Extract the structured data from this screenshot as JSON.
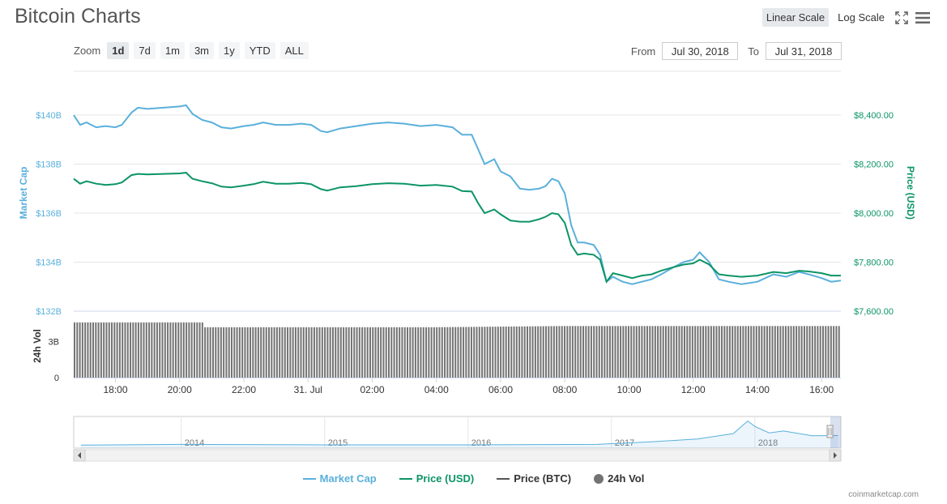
{
  "title": "Bitcoin Charts",
  "controls": {
    "linear_scale": "Linear Scale",
    "log_scale": "Log Scale",
    "fullscreen_icon": "fullscreen-icon",
    "menu_icon": "hamburger-menu-icon"
  },
  "zoom": {
    "label": "Zoom",
    "options": [
      "1d",
      "7d",
      "1m",
      "3m",
      "1y",
      "YTD",
      "ALL"
    ],
    "selected": "1d"
  },
  "range": {
    "from_label": "From",
    "from_value": "Jul 30, 2018",
    "to_label": "To",
    "to_value": "Jul 31, 2018"
  },
  "credit": "coinmarketcap.com",
  "colors": {
    "market_cap": "#5ab0db",
    "price_usd": "#0c9467",
    "price_btc": "#555555",
    "volume": "#737373",
    "grid": "#e6e6e6"
  },
  "chart_data": {
    "type": "line",
    "x_axis": {
      "ticks": [
        "18:00",
        "20:00",
        "22:00",
        "31. Jul",
        "02:00",
        "04:00",
        "06:00",
        "08:00",
        "10:00",
        "12:00",
        "14:00",
        "16:00"
      ],
      "range_hours": [
        16.7,
        40.6
      ]
    },
    "y_axis_left": {
      "label": "Market Cap",
      "ticks": [
        "$140B",
        "$138B",
        "$136B",
        "$134B",
        "$132B"
      ],
      "range": [
        132,
        140.8
      ]
    },
    "y_axis_right": {
      "label": "Price (USD)",
      "ticks": [
        "$8,400.00",
        "$8,200.00",
        "$8,000.00",
        "$7,800.00",
        "$7,600.00"
      ],
      "range": [
        7600,
        8400
      ]
    },
    "volume_axis": {
      "label": "24h Vol",
      "ticks": [
        "3B",
        "0"
      ]
    },
    "series": [
      {
        "name": "Market Cap",
        "unit": "billion USD",
        "points": [
          [
            16.7,
            140.0
          ],
          [
            16.9,
            139.6
          ],
          [
            17.1,
            139.7
          ],
          [
            17.4,
            139.5
          ],
          [
            17.7,
            139.55
          ],
          [
            18.0,
            139.5
          ],
          [
            18.2,
            139.6
          ],
          [
            18.5,
            140.1
          ],
          [
            18.7,
            140.3
          ],
          [
            19.0,
            140.25
          ],
          [
            19.5,
            140.3
          ],
          [
            20.0,
            140.35
          ],
          [
            20.2,
            140.4
          ],
          [
            20.4,
            140.05
          ],
          [
            20.7,
            139.8
          ],
          [
            21.0,
            139.7
          ],
          [
            21.3,
            139.5
          ],
          [
            21.6,
            139.45
          ],
          [
            22.0,
            139.55
          ],
          [
            22.3,
            139.6
          ],
          [
            22.6,
            139.7
          ],
          [
            23.0,
            139.6
          ],
          [
            23.4,
            139.6
          ],
          [
            23.8,
            139.65
          ],
          [
            24.1,
            139.6
          ],
          [
            24.4,
            139.35
          ],
          [
            24.6,
            139.3
          ],
          [
            25.0,
            139.45
          ],
          [
            25.5,
            139.55
          ],
          [
            26.0,
            139.65
          ],
          [
            26.5,
            139.7
          ],
          [
            27.0,
            139.65
          ],
          [
            27.5,
            139.55
          ],
          [
            28.0,
            139.6
          ],
          [
            28.5,
            139.5
          ],
          [
            28.8,
            139.2
          ],
          [
            29.1,
            139.2
          ],
          [
            29.3,
            138.6
          ],
          [
            29.5,
            138.0
          ],
          [
            29.8,
            138.2
          ],
          [
            30.0,
            137.7
          ],
          [
            30.3,
            137.5
          ],
          [
            30.6,
            137.0
          ],
          [
            30.9,
            136.95
          ],
          [
            31.2,
            137.0
          ],
          [
            31.4,
            137.1
          ],
          [
            31.6,
            137.4
          ],
          [
            31.8,
            137.3
          ],
          [
            32.0,
            136.8
          ],
          [
            32.2,
            135.5
          ],
          [
            32.4,
            134.8
          ],
          [
            32.6,
            134.8
          ],
          [
            32.9,
            134.7
          ],
          [
            33.1,
            134.3
          ],
          [
            33.3,
            133.2
          ],
          [
            33.5,
            133.4
          ],
          [
            33.8,
            133.2
          ],
          [
            34.1,
            133.1
          ],
          [
            34.4,
            133.2
          ],
          [
            34.7,
            133.3
          ],
          [
            35.0,
            133.5
          ],
          [
            35.4,
            133.8
          ],
          [
            35.7,
            134.0
          ],
          [
            36.0,
            134.1
          ],
          [
            36.2,
            134.4
          ],
          [
            36.5,
            134.0
          ],
          [
            36.8,
            133.3
          ],
          [
            37.1,
            133.2
          ],
          [
            37.5,
            133.1
          ],
          [
            38.0,
            133.2
          ],
          [
            38.5,
            133.5
          ],
          [
            38.9,
            133.4
          ],
          [
            39.3,
            133.6
          ],
          [
            39.6,
            133.5
          ],
          [
            40.0,
            133.35
          ],
          [
            40.3,
            133.2
          ],
          [
            40.6,
            133.25
          ]
        ]
      },
      {
        "name": "Price (USD)",
        "unit": "USD",
        "points": [
          [
            16.7,
            8140
          ],
          [
            16.9,
            8120
          ],
          [
            17.1,
            8130
          ],
          [
            17.4,
            8120
          ],
          [
            17.7,
            8115
          ],
          [
            18.0,
            8118
          ],
          [
            18.2,
            8125
          ],
          [
            18.5,
            8155
          ],
          [
            18.7,
            8160
          ],
          [
            19.0,
            8158
          ],
          [
            19.5,
            8160
          ],
          [
            20.0,
            8162
          ],
          [
            20.2,
            8165
          ],
          [
            20.4,
            8140
          ],
          [
            20.7,
            8130
          ],
          [
            21.0,
            8122
          ],
          [
            21.3,
            8108
          ],
          [
            21.6,
            8105
          ],
          [
            22.0,
            8112
          ],
          [
            22.3,
            8118
          ],
          [
            22.6,
            8128
          ],
          [
            23.0,
            8120
          ],
          [
            23.4,
            8120
          ],
          [
            23.8,
            8123
          ],
          [
            24.1,
            8118
          ],
          [
            24.4,
            8098
          ],
          [
            24.6,
            8092
          ],
          [
            25.0,
            8105
          ],
          [
            25.5,
            8110
          ],
          [
            26.0,
            8118
          ],
          [
            26.5,
            8122
          ],
          [
            27.0,
            8120
          ],
          [
            27.5,
            8112
          ],
          [
            28.0,
            8115
          ],
          [
            28.5,
            8108
          ],
          [
            28.8,
            8090
          ],
          [
            29.1,
            8088
          ],
          [
            29.3,
            8040
          ],
          [
            29.5,
            8000
          ],
          [
            29.8,
            8015
          ],
          [
            30.0,
            7995
          ],
          [
            30.3,
            7970
          ],
          [
            30.6,
            7965
          ],
          [
            30.9,
            7965
          ],
          [
            31.2,
            7975
          ],
          [
            31.4,
            7985
          ],
          [
            31.6,
            8000
          ],
          [
            31.8,
            7995
          ],
          [
            32.0,
            7960
          ],
          [
            32.2,
            7870
          ],
          [
            32.4,
            7830
          ],
          [
            32.6,
            7835
          ],
          [
            32.9,
            7830
          ],
          [
            33.1,
            7810
          ],
          [
            33.3,
            7720
          ],
          [
            33.5,
            7755
          ],
          [
            33.8,
            7745
          ],
          [
            34.1,
            7735
          ],
          [
            34.4,
            7745
          ],
          [
            34.7,
            7750
          ],
          [
            35.0,
            7765
          ],
          [
            35.4,
            7780
          ],
          [
            35.7,
            7790
          ],
          [
            36.0,
            7795
          ],
          [
            36.2,
            7810
          ],
          [
            36.5,
            7790
          ],
          [
            36.8,
            7750
          ],
          [
            37.1,
            7745
          ],
          [
            37.5,
            7740
          ],
          [
            38.0,
            7745
          ],
          [
            38.5,
            7760
          ],
          [
            38.9,
            7755
          ],
          [
            39.3,
            7765
          ],
          [
            39.6,
            7762
          ],
          [
            40.0,
            7755
          ],
          [
            40.3,
            7745
          ],
          [
            40.6,
            7745
          ]
        ]
      },
      {
        "name": "Price (BTC)",
        "points": []
      },
      {
        "name": "24h Vol",
        "approx_value_billion_usd": [
          [
            16.7,
            4.6
          ],
          [
            20.7,
            4.5
          ],
          [
            20.8,
            4.2
          ],
          [
            28.0,
            4.2
          ],
          [
            32.0,
            4.3
          ],
          [
            40.6,
            4.3
          ]
        ]
      }
    ],
    "legend": [
      "Market Cap",
      "Price (USD)",
      "Price (BTC)",
      "24h Vol"
    ],
    "legend_position": "bottom",
    "navigator": {
      "year_labels": [
        "2014",
        "2015",
        "2016",
        "2017",
        "2018"
      ],
      "shape": [
        [
          2013.3,
          0.02
        ],
        [
          2014.0,
          0.05
        ],
        [
          2015.0,
          0.03
        ],
        [
          2016.0,
          0.03
        ],
        [
          2016.9,
          0.05
        ],
        [
          2017.3,
          0.15
        ],
        [
          2017.6,
          0.25
        ],
        [
          2017.85,
          0.45
        ],
        [
          2017.95,
          0.92
        ],
        [
          2018.0,
          0.72
        ],
        [
          2018.1,
          0.48
        ],
        [
          2018.2,
          0.55
        ],
        [
          2018.4,
          0.37
        ],
        [
          2018.58,
          0.38
        ]
      ]
    },
    "grid": true
  }
}
